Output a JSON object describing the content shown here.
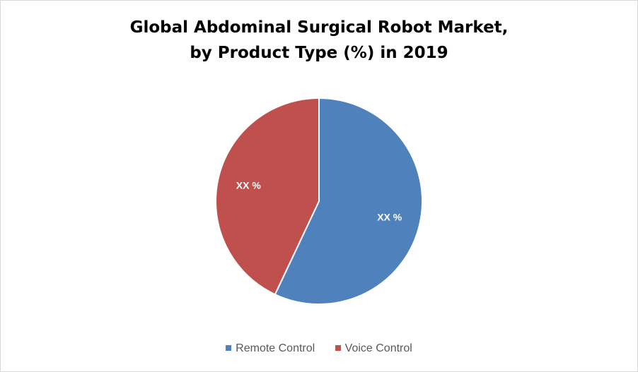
{
  "chart_data": {
    "type": "pie",
    "title": "Global Abdominal Surgical Robot Market,",
    "subtitle": "by Product Type (%) in 2019",
    "categories": [
      "Remote Control",
      "Voice Control"
    ],
    "values": [
      57,
      43
    ],
    "data_labels": [
      "XX %",
      "XX %"
    ],
    "colors": [
      "#4f81bd",
      "#c0504d"
    ],
    "legend_position": "bottom",
    "start_angle_deg": 0,
    "direction": "clockwise"
  }
}
